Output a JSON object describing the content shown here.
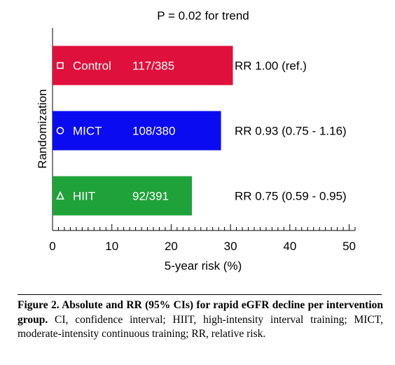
{
  "chart_data": {
    "type": "bar",
    "orientation": "horizontal",
    "title": "P = 0.02 for trend",
    "xlabel": "5-year risk (%)",
    "ylabel": "Randomization",
    "xlim": [
      0,
      51
    ],
    "x_ticks": [
      0,
      10,
      20,
      30,
      40,
      50
    ],
    "x_tick_labels": [
      "0",
      "10",
      "20",
      "30",
      "40",
      "50"
    ],
    "grid": false,
    "categories": [
      "Control",
      "MICT",
      "HIIT"
    ],
    "values": [
      30.4,
      28.4,
      23.5
    ],
    "counts": [
      "117/385",
      "108/380",
      "92/391"
    ],
    "markers": [
      "square",
      "circle",
      "triangle"
    ],
    "annotations": [
      "RR 1.00 (ref.)",
      "RR 0.93 (0.75 - 1.16)",
      "RR 0.75 (0.59 - 0.95)"
    ],
    "colors": [
      "#e0103c",
      "#0b0bf2",
      "#1fa23a"
    ]
  },
  "caption": {
    "bold": "Figure 2. Absolute and RR (95% CIs) for rapid eGFR decline per intervention group.",
    "text": " CI, confidence interval; HIIT, high-intensity interval training; MICT, moderate-intensity continuous training; RR, relative risk."
  }
}
